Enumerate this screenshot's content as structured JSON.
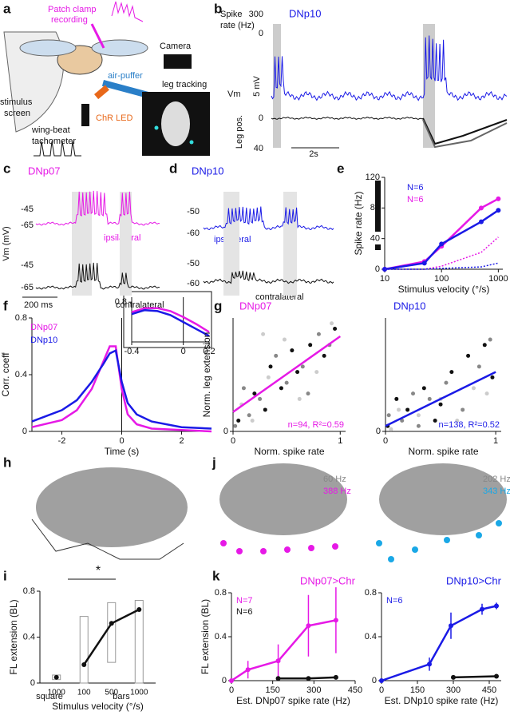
{
  "figure": {
    "letters": [
      "a",
      "b",
      "c",
      "d",
      "e",
      "f",
      "g",
      "h",
      "i",
      "j",
      "k"
    ],
    "a": {
      "texts": [
        "Patch clamp",
        "recording",
        "Camera",
        "air-puffer",
        "stimulus",
        "screen",
        "ChR LED",
        "leg tracking",
        "wing-beat",
        "tachometer"
      ]
    },
    "b": {
      "texts": [
        "DNp10",
        "Spike",
        "rate (Hz)",
        "300",
        "0",
        "Vm",
        "5 mV",
        "Leg pos.",
        "0",
        "40",
        "2s"
      ]
    },
    "c": {
      "texts": [
        "DNp07",
        "-45",
        "-65",
        "ipsilateral",
        "-45",
        "-65",
        "Vm (mV)",
        "200 ms",
        "contralateral"
      ]
    },
    "d": {
      "texts": [
        "DNp10",
        "-50",
        "-60",
        "ipsilateral",
        "-50",
        "-60",
        "contralateral"
      ]
    },
    "j": {
      "texts": [
        "60 Hz",
        "388 Hz",
        "202 Hz",
        "343 Hz"
      ]
    }
  },
  "chart_data": [
    {
      "type": "line",
      "xlabel": "Stimulus velocity (°/s)",
      "ylabel": "Spike rate (Hz)",
      "xscale": "log",
      "xlim": [
        10,
        1200
      ],
      "ylim": [
        0,
        120
      ],
      "xticks": [
        10,
        100,
        1000
      ],
      "yticks": [
        0,
        40,
        80,
        120
      ],
      "series": [
        {
          "color": "#e619e6",
          "mode": "line+markers",
          "x": [
            10,
            50,
            100,
            500,
            1000
          ],
          "values": [
            0,
            10,
            30,
            80,
            92
          ]
        },
        {
          "color": "#1a1ae6",
          "mode": "line+markers",
          "x": [
            10,
            50,
            100,
            500,
            1000
          ],
          "values": [
            0,
            8,
            33,
            62,
            77
          ]
        },
        {
          "color": "#e619e6",
          "mode": "line",
          "dotted": true,
          "x": [
            10,
            50,
            100,
            500,
            1000
          ],
          "values": [
            0,
            0,
            4,
            22,
            42
          ]
        },
        {
          "color": "#1a1ae6",
          "mode": "line",
          "dotted": true,
          "x": [
            10,
            50,
            100,
            500,
            1000
          ],
          "values": [
            0,
            0,
            1,
            3,
            8
          ]
        }
      ],
      "annotations": [
        {
          "text": "N=6",
          "color": "#1a1ae6"
        },
        {
          "text": "N=6",
          "color": "#e619e6"
        }
      ]
    },
    {
      "type": "line",
      "xlabel": "Time (s)",
      "ylabel": "Corr. coeff",
      "xlim": [
        -3,
        3
      ],
      "ylim": [
        0,
        0.8
      ],
      "xticks": [
        -2,
        0,
        2
      ],
      "yticks": [
        0,
        0.4,
        0.8
      ],
      "zero_line": true,
      "series": [
        {
          "color": "#e619e6",
          "mode": "line",
          "x": [
            -3,
            -2,
            -1.5,
            -1,
            -0.6,
            -0.4,
            -0.2,
            0,
            0.2,
            0.5,
            1,
            2,
            3
          ],
          "values": [
            0.03,
            0.08,
            0.15,
            0.3,
            0.5,
            0.6,
            0.6,
            0.3,
            0.12,
            0.05,
            0.02,
            0.01,
            0
          ]
        },
        {
          "color": "#1a1ae6",
          "mode": "line",
          "x": [
            -3,
            -2,
            -1.5,
            -1,
            -0.6,
            -0.4,
            -0.2,
            0,
            0.2,
            0.5,
            1,
            2,
            3
          ],
          "values": [
            0.07,
            0.15,
            0.22,
            0.35,
            0.48,
            0.55,
            0.57,
            0.35,
            0.2,
            0.12,
            0.07,
            0.03,
            0.02
          ]
        }
      ],
      "annotations": [
        {
          "text": "DNp07",
          "color": "#e619e6"
        },
        {
          "text": "DNp10",
          "color": "#1a1ae6"
        }
      ]
    },
    {
      "type": "line",
      "xlim": [
        -0.4,
        0.2
      ],
      "ylim": [
        0.4,
        0.85
      ],
      "xticks": [
        -0.4,
        0,
        0.2
      ],
      "yticks": [
        0.8
      ],
      "zero_line": true,
      "series": [
        {
          "color": "#e619e6",
          "mode": "line",
          "x": [
            -0.4,
            -0.3,
            -0.2,
            -0.1,
            0,
            0.1,
            0.2
          ],
          "values": [
            0.7,
            0.74,
            0.74,
            0.71,
            0.65,
            0.58,
            0.5
          ]
        },
        {
          "color": "#1a1ae6",
          "mode": "line",
          "x": [
            -0.4,
            -0.3,
            -0.2,
            -0.1,
            0,
            0.1,
            0.2
          ],
          "values": [
            0.68,
            0.72,
            0.71,
            0.67,
            0.6,
            0.53,
            0.46
          ]
        }
      ]
    },
    {
      "type": "scatter",
      "title": "DNp07",
      "title_color": "#e619e6",
      "xlabel": "Norm. spike rate",
      "ylabel": "Norm. leg extension",
      "xlim": [
        0,
        1.05
      ],
      "ylim": [
        0,
        1.05
      ],
      "xticks": [
        0,
        1
      ],
      "yticks": [
        0
      ],
      "series": [
        {
          "color": "#111",
          "mode": "markers",
          "x": [
            0.05,
            0.2,
            0.35,
            0.45,
            0.6,
            0.72,
            0.85,
            0.95,
            0.3,
            0.55
          ],
          "values": [
            0.1,
            0.35,
            0.6,
            0.4,
            0.55,
            0.8,
            0.7,
            0.95,
            0.2,
            0.75
          ]
        },
        {
          "color": "#888",
          "mode": "markers",
          "x": [
            0.02,
            0.1,
            0.25,
            0.4,
            0.5,
            0.65,
            0.8,
            0.9,
            0.15,
            0.7
          ],
          "values": [
            0.05,
            0.4,
            0.3,
            0.7,
            0.45,
            0.6,
            0.9,
            0.8,
            0.15,
            0.35
          ]
        },
        {
          "color": "#ccc",
          "mode": "markers",
          "x": [
            0.08,
            0.18,
            0.33,
            0.48,
            0.62,
            0.78,
            0.92,
            0.28
          ],
          "values": [
            0.25,
            0.1,
            0.5,
            0.85,
            0.3,
            0.55,
            1,
            0.9
          ]
        },
        {
          "color": "#e619e6",
          "mode": "line",
          "x": [
            0,
            1
          ],
          "values": [
            0.18,
            0.88
          ]
        }
      ],
      "annotations": [
        {
          "text": "n=94, R²=0.59",
          "color": "#e619e6"
        }
      ]
    },
    {
      "type": "scatter",
      "title": "DNp10",
      "title_color": "#1a1ae6",
      "xlabel": "Norm. spike rate",
      "xlim": [
        0,
        1.05
      ],
      "ylim": [
        0,
        1.05
      ],
      "xticks": [
        0,
        1
      ],
      "yticks": [
        0
      ],
      "series": [
        {
          "color": "#111",
          "mode": "markers",
          "x": [
            0.02,
            0.1,
            0.2,
            0.35,
            0.5,
            0.6,
            0.75,
            0.9,
            0.97,
            0.45
          ],
          "values": [
            0.05,
            0.3,
            0.2,
            0.4,
            0.25,
            0.55,
            0.7,
            0.8,
            0.5,
            0.1
          ]
        },
        {
          "color": "#888",
          "mode": "markers",
          "x": [
            0.03,
            0.15,
            0.25,
            0.4,
            0.55,
            0.7,
            0.85,
            0.95,
            0.3
          ],
          "values": [
            0.15,
            0.1,
            0.35,
            0.3,
            0.45,
            0.2,
            0.6,
            0.85,
            0.05
          ]
        },
        {
          "color": "#ccc",
          "mode": "markers",
          "x": [
            0.05,
            0.12,
            0.3,
            0.5,
            0.65,
            0.8,
            0.92
          ],
          "values": [
            0.02,
            0.2,
            0.15,
            0.3,
            0.1,
            0.4,
            0.35
          ]
        },
        {
          "color": "#1a1ae6",
          "mode": "line",
          "x": [
            0,
            1
          ],
          "values": [
            0.05,
            0.55
          ]
        }
      ],
      "annotations": [
        {
          "text": "n=138, R²=0.52",
          "color": "#1a1ae6"
        }
      ]
    },
    {
      "type": "box",
      "xlabel": "Stimulus velocity (°/s)",
      "ylabel": "FL extension (BL)",
      "categories": [
        "1000",
        "100",
        "500",
        "1000"
      ],
      "xlim": [
        -0.6,
        3.6
      ],
      "ylim": [
        0,
        0.8
      ],
      "yticks": [
        0,
        0.4,
        0.8
      ],
      "ranges": [
        [
          0.03,
          0.07
        ],
        [
          0,
          0.58
        ],
        [
          0.18,
          0.7
        ],
        [
          0,
          0.72
        ]
      ],
      "series": [
        {
          "color": "#111",
          "mode": "line+markers",
          "values": [
            0.05,
            null,
            null,
            null
          ]
        },
        {
          "color": "#111",
          "mode": "line+markers",
          "values": [
            null,
            0.16,
            0.52,
            0.64
          ]
        }
      ],
      "annotations": [
        {
          "text": "square",
          "color": "#111"
        },
        {
          "text": "bars",
          "color": "#111"
        },
        {
          "text": "*",
          "color": "#111"
        }
      ]
    },
    {
      "type": "line",
      "title": "DNp07>Chr",
      "title_color": "#e619e6",
      "xlabel": "Est. DNp07 spike rate (Hz)",
      "ylabel": "FL extension (BL)",
      "xlim": [
        0,
        450
      ],
      "ylim": [
        0,
        0.8
      ],
      "xticks": [
        0,
        150,
        300,
        450
      ],
      "yticks": [
        0,
        0.4,
        0.8
      ],
      "series": [
        {
          "color": "#e619e6",
          "mode": "line+markers",
          "x": [
            0,
            60,
            170,
            280,
            380
          ],
          "values": [
            0,
            0.1,
            0.18,
            0.5,
            0.55
          ],
          "errors": [
            0,
            0.08,
            0.15,
            0.28,
            0.3
          ]
        },
        {
          "color": "#111",
          "mode": "line+markers",
          "x": [
            170,
            280,
            380
          ],
          "values": [
            0.02,
            0.02,
            0.03
          ]
        }
      ],
      "annotations": [
        {
          "text": "N=7",
          "color": "#e619e6"
        },
        {
          "text": "N=6",
          "color": "#111"
        }
      ]
    },
    {
      "type": "line",
      "title": "DNp10>Chr",
      "title_color": "#1a1ae6",
      "xlabel": "Est. DNp10 spike rate (Hz)",
      "xlim": [
        0,
        500
      ],
      "ylim": [
        0,
        0.8
      ],
      "xticks": [
        0,
        150,
        300,
        450
      ],
      "yticks": [
        0,
        0.4,
        0.8
      ],
      "series": [
        {
          "color": "#1a1ae6",
          "mode": "line+markers",
          "x": [
            0,
            200,
            290,
            420,
            480
          ],
          "values": [
            0,
            0.15,
            0.5,
            0.65,
            0.68
          ],
          "errors": [
            0,
            0.06,
            0.12,
            0.05,
            0.03
          ]
        },
        {
          "color": "#111",
          "mode": "line+markers",
          "x": [
            300,
            480
          ],
          "values": [
            0.03,
            0.04
          ]
        }
      ],
      "annotations": [
        {
          "text": "N=6",
          "color": "#1a1ae6"
        }
      ]
    }
  ]
}
